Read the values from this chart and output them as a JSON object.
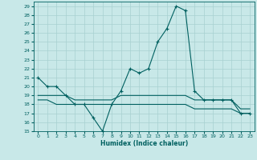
{
  "title": "",
  "xlabel": "Humidex (Indice chaleur)",
  "ylabel": "",
  "bg_color": "#c8e8e8",
  "line_color": "#006060",
  "grid_color": "#a8d0d0",
  "xlim": [
    -0.5,
    23.5
  ],
  "ylim": [
    15,
    29.5
  ],
  "yticks": [
    15,
    16,
    17,
    18,
    19,
    20,
    21,
    22,
    23,
    24,
    25,
    26,
    27,
    28,
    29
  ],
  "xticks": [
    0,
    1,
    2,
    3,
    4,
    5,
    6,
    7,
    8,
    9,
    10,
    11,
    12,
    13,
    14,
    15,
    16,
    17,
    18,
    19,
    20,
    21,
    22,
    23
  ],
  "line1_x": [
    0,
    1,
    2,
    3,
    4,
    5,
    6,
    7,
    8,
    9,
    10,
    11,
    12,
    13,
    14,
    15,
    16,
    17,
    18,
    19,
    20,
    21,
    22,
    23
  ],
  "line1_y": [
    21,
    20,
    20,
    19,
    18,
    18,
    16.5,
    15,
    18,
    19.5,
    22,
    21.5,
    22,
    25,
    26.5,
    29,
    28.5,
    19.5,
    18.5,
    18.5,
    18.5,
    18.5,
    17,
    17
  ],
  "line2_x": [
    0,
    1,
    2,
    3,
    4,
    5,
    6,
    7,
    8,
    9,
    10,
    11,
    12,
    13,
    14,
    15,
    16,
    17,
    18,
    19,
    20,
    21,
    22,
    23
  ],
  "line2_y": [
    19,
    19,
    19,
    19,
    18.5,
    18.5,
    18.5,
    18.5,
    18.5,
    19,
    19,
    19,
    19,
    19,
    19,
    19,
    19,
    18.5,
    18.5,
    18.5,
    18.5,
    18.5,
    17.5,
    17.5
  ],
  "line3_x": [
    0,
    1,
    2,
    3,
    4,
    5,
    6,
    7,
    8,
    9,
    10,
    11,
    12,
    13,
    14,
    15,
    16,
    17,
    18,
    19,
    20,
    21,
    22,
    23
  ],
  "line3_y": [
    18.5,
    18.5,
    18,
    18,
    18,
    18,
    18,
    18,
    18,
    18,
    18,
    18,
    18,
    18,
    18,
    18,
    18,
    17.5,
    17.5,
    17.5,
    17.5,
    17.5,
    17,
    17
  ]
}
